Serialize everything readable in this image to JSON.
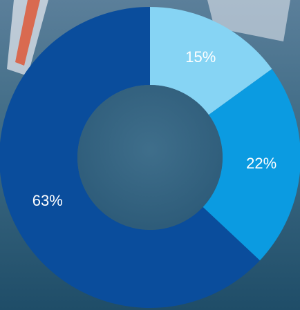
{
  "chart_data": {
    "type": "donut",
    "values": [
      15,
      22,
      63
    ],
    "value_labels": [
      "15%",
      "22%",
      "63%"
    ],
    "colors": [
      "#86d4f4",
      "#0b9be1",
      "#0a4d9c"
    ]
  }
}
